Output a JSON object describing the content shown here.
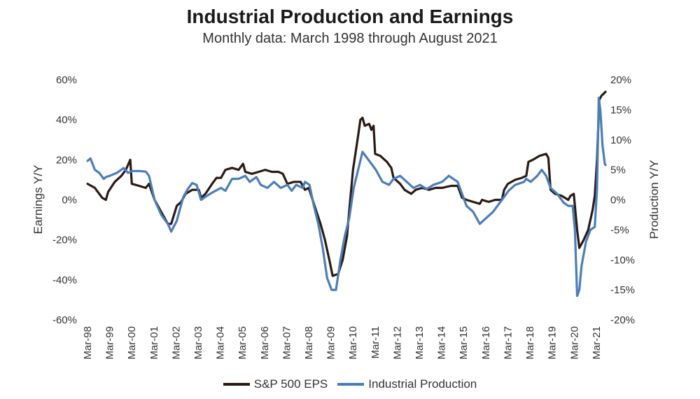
{
  "chart_data": {
    "type": "line",
    "title": "Industrial Production and Earnings",
    "subtitle": "Monthly data: March 1998 through August 2021",
    "ylabel_left": "Earnings Y/Y",
    "ylabel_right": "Production Y/Y",
    "ylim_left": [
      -60,
      60
    ],
    "ylim_right": [
      -20,
      20
    ],
    "yticks_left": [
      "60%",
      "40%",
      "20%",
      "0%",
      "-20%",
      "-40%",
      "-60%"
    ],
    "yticks_right": [
      "20%",
      "15%",
      "10%",
      "5%",
      "0%",
      "-5%",
      "-10%",
      "-15%",
      "-20%"
    ],
    "x_start": 1998.167,
    "x_end": 2021.583,
    "xtick_labels": [
      "Mar-98",
      "Mar-99",
      "Mar-00",
      "Mar-01",
      "Mar-02",
      "Mar-03",
      "Mar-04",
      "Mar-05",
      "Mar-06",
      "Mar-07",
      "Mar-08",
      "Mar-09",
      "Mar-10",
      "Mar-11",
      "Mar-12",
      "Mar-13",
      "Mar-14",
      "Mar-15",
      "Mar-16",
      "Mar-17",
      "Mar-18",
      "Mar-19",
      "Mar-20",
      "Mar-21"
    ],
    "grid": false,
    "legend_position": "bottom",
    "series": [
      {
        "name": "S&P 500 EPS",
        "axis": "left",
        "color": "#2b1a14",
        "points": [
          [
            1998.17,
            8
          ],
          [
            1998.5,
            6
          ],
          [
            1998.83,
            1
          ],
          [
            1999.0,
            0
          ],
          [
            1999.1,
            4
          ],
          [
            1999.4,
            9
          ],
          [
            1999.7,
            12
          ],
          [
            1999.9,
            15
          ],
          [
            2000.1,
            20
          ],
          [
            2000.17,
            8
          ],
          [
            2000.5,
            7
          ],
          [
            2000.8,
            6
          ],
          [
            2000.95,
            8
          ],
          [
            2001.2,
            0
          ],
          [
            2001.5,
            -6
          ],
          [
            2001.8,
            -12
          ],
          [
            2001.95,
            -12
          ],
          [
            2002.2,
            -3
          ],
          [
            2002.4,
            -1
          ],
          [
            2002.6,
            3
          ],
          [
            2002.9,
            5
          ],
          [
            2003.2,
            5
          ],
          [
            2003.3,
            1
          ],
          [
            2003.5,
            3
          ],
          [
            2003.8,
            8
          ],
          [
            2004.0,
            11
          ],
          [
            2004.2,
            11
          ],
          [
            2004.4,
            15
          ],
          [
            2004.7,
            16
          ],
          [
            2005.0,
            15
          ],
          [
            2005.2,
            18
          ],
          [
            2005.3,
            14
          ],
          [
            2005.6,
            13
          ],
          [
            2005.9,
            14
          ],
          [
            2006.2,
            15
          ],
          [
            2006.5,
            14
          ],
          [
            2006.8,
            14
          ],
          [
            2007.0,
            13
          ],
          [
            2007.2,
            8
          ],
          [
            2007.5,
            9
          ],
          [
            2007.8,
            9
          ],
          [
            2008.0,
            5
          ],
          [
            2008.17,
            6
          ],
          [
            2008.4,
            -2
          ],
          [
            2008.7,
            -12
          ],
          [
            2008.9,
            -20
          ],
          [
            2009.1,
            -30
          ],
          [
            2009.25,
            -38
          ],
          [
            2009.5,
            -37
          ],
          [
            2009.7,
            -30
          ],
          [
            2009.9,
            -18
          ],
          [
            2010.0,
            -5
          ],
          [
            2010.17,
            15
          ],
          [
            2010.4,
            32
          ],
          [
            2010.5,
            40
          ],
          [
            2010.6,
            41
          ],
          [
            2010.7,
            37
          ],
          [
            2010.9,
            38
          ],
          [
            2011.0,
            35
          ],
          [
            2011.1,
            37
          ],
          [
            2011.17,
            23
          ],
          [
            2011.4,
            22
          ],
          [
            2011.7,
            19
          ],
          [
            2011.9,
            16
          ],
          [
            2012.0,
            11
          ],
          [
            2012.3,
            8
          ],
          [
            2012.5,
            5
          ],
          [
            2012.8,
            3
          ],
          [
            2013.0,
            5
          ],
          [
            2013.3,
            6
          ],
          [
            2013.6,
            5
          ],
          [
            2013.9,
            6
          ],
          [
            2014.2,
            6
          ],
          [
            2014.6,
            7
          ],
          [
            2014.9,
            7
          ],
          [
            2015.1,
            1
          ],
          [
            2015.3,
            0
          ],
          [
            2015.6,
            -1
          ],
          [
            2015.9,
            -2
          ],
          [
            2016.0,
            0
          ],
          [
            2016.3,
            -1
          ],
          [
            2016.6,
            0
          ],
          [
            2016.9,
            0
          ],
          [
            2017.0,
            5
          ],
          [
            2017.17,
            8
          ],
          [
            2017.5,
            10
          ],
          [
            2017.8,
            11
          ],
          [
            2018.0,
            12
          ],
          [
            2018.1,
            19
          ],
          [
            2018.3,
            20
          ],
          [
            2018.6,
            22
          ],
          [
            2018.9,
            23
          ],
          [
            2019.0,
            21
          ],
          [
            2019.1,
            5
          ],
          [
            2019.3,
            3
          ],
          [
            2019.6,
            2
          ],
          [
            2019.9,
            0
          ],
          [
            2020.0,
            2
          ],
          [
            2020.15,
            3
          ],
          [
            2020.3,
            -15
          ],
          [
            2020.4,
            -24
          ],
          [
            2020.6,
            -20
          ],
          [
            2020.8,
            -15
          ],
          [
            2021.0,
            -5
          ],
          [
            2021.1,
            2
          ],
          [
            2021.2,
            20
          ],
          [
            2021.3,
            50
          ],
          [
            2021.4,
            52
          ],
          [
            2021.583,
            54
          ]
        ]
      },
      {
        "name": "Industrial Production",
        "axis": "right",
        "color": "#4a7ebb",
        "points": [
          [
            1998.17,
            6.5
          ],
          [
            1998.3,
            6.9
          ],
          [
            1998.5,
            5
          ],
          [
            1998.7,
            4.5
          ],
          [
            1998.9,
            3.5
          ],
          [
            1999.0,
            3.8
          ],
          [
            1999.17,
            4
          ],
          [
            1999.5,
            4.5
          ],
          [
            1999.8,
            5.3
          ],
          [
            2000.0,
            4.5
          ],
          [
            2000.2,
            4.8
          ],
          [
            2000.5,
            4.8
          ],
          [
            2000.8,
            4.7
          ],
          [
            2000.95,
            4
          ],
          [
            2001.2,
            0
          ],
          [
            2001.5,
            -2.5
          ],
          [
            2001.8,
            -4
          ],
          [
            2001.95,
            -5.3
          ],
          [
            2002.2,
            -3.5
          ],
          [
            2002.5,
            0.5
          ],
          [
            2002.7,
            1.8
          ],
          [
            2002.9,
            2.8
          ],
          [
            2003.1,
            2.5
          ],
          [
            2003.3,
            0
          ],
          [
            2003.5,
            0.5
          ],
          [
            2003.8,
            1.2
          ],
          [
            2004.2,
            2
          ],
          [
            2004.4,
            1.5
          ],
          [
            2004.7,
            3.5
          ],
          [
            2005.0,
            3.5
          ],
          [
            2005.3,
            4
          ],
          [
            2005.5,
            3
          ],
          [
            2005.8,
            3.8
          ],
          [
            2006.0,
            2.5
          ],
          [
            2006.3,
            2
          ],
          [
            2006.6,
            3
          ],
          [
            2006.9,
            2
          ],
          [
            2007.2,
            2.5
          ],
          [
            2007.4,
            1.5
          ],
          [
            2007.6,
            2.5
          ],
          [
            2007.9,
            2
          ],
          [
            2008.0,
            3
          ],
          [
            2008.2,
            2.5
          ],
          [
            2008.4,
            -1
          ],
          [
            2008.6,
            -4
          ],
          [
            2008.8,
            -8
          ],
          [
            2009.0,
            -13
          ],
          [
            2009.2,
            -15
          ],
          [
            2009.4,
            -15
          ],
          [
            2009.6,
            -10
          ],
          [
            2009.8,
            -6
          ],
          [
            2010.0,
            -3
          ],
          [
            2010.2,
            2
          ],
          [
            2010.4,
            5
          ],
          [
            2010.6,
            8
          ],
          [
            2010.8,
            7
          ],
          [
            2011.0,
            6
          ],
          [
            2011.2,
            5
          ],
          [
            2011.5,
            3
          ],
          [
            2011.8,
            2.5
          ],
          [
            2012.0,
            3.5
          ],
          [
            2012.3,
            4
          ],
          [
            2012.6,
            3
          ],
          [
            2012.9,
            2
          ],
          [
            2013.2,
            2.5
          ],
          [
            2013.5,
            1.8
          ],
          [
            2013.8,
            2.5
          ],
          [
            2014.2,
            3
          ],
          [
            2014.5,
            4
          ],
          [
            2014.9,
            3
          ],
          [
            2015.0,
            2
          ],
          [
            2015.3,
            -1
          ],
          [
            2015.6,
            -2
          ],
          [
            2015.9,
            -4
          ],
          [
            2016.2,
            -3
          ],
          [
            2016.5,
            -2
          ],
          [
            2016.9,
            0
          ],
          [
            2017.2,
            1.5
          ],
          [
            2017.5,
            2.5
          ],
          [
            2017.9,
            3
          ],
          [
            2018.0,
            3.5
          ],
          [
            2018.2,
            3
          ],
          [
            2018.5,
            4
          ],
          [
            2018.7,
            5
          ],
          [
            2018.9,
            4
          ],
          [
            2019.1,
            2
          ],
          [
            2019.4,
            1
          ],
          [
            2019.7,
            -0.5
          ],
          [
            2019.9,
            -1
          ],
          [
            2020.1,
            -1
          ],
          [
            2020.2,
            -5
          ],
          [
            2020.3,
            -16
          ],
          [
            2020.4,
            -15
          ],
          [
            2020.5,
            -11
          ],
          [
            2020.7,
            -7
          ],
          [
            2020.9,
            -5
          ],
          [
            2021.1,
            -4.5
          ],
          [
            2021.2,
            2
          ],
          [
            2021.28,
            17
          ],
          [
            2021.35,
            15
          ],
          [
            2021.45,
            9
          ],
          [
            2021.55,
            6
          ],
          [
            2021.583,
            5.8
          ]
        ]
      }
    ]
  }
}
